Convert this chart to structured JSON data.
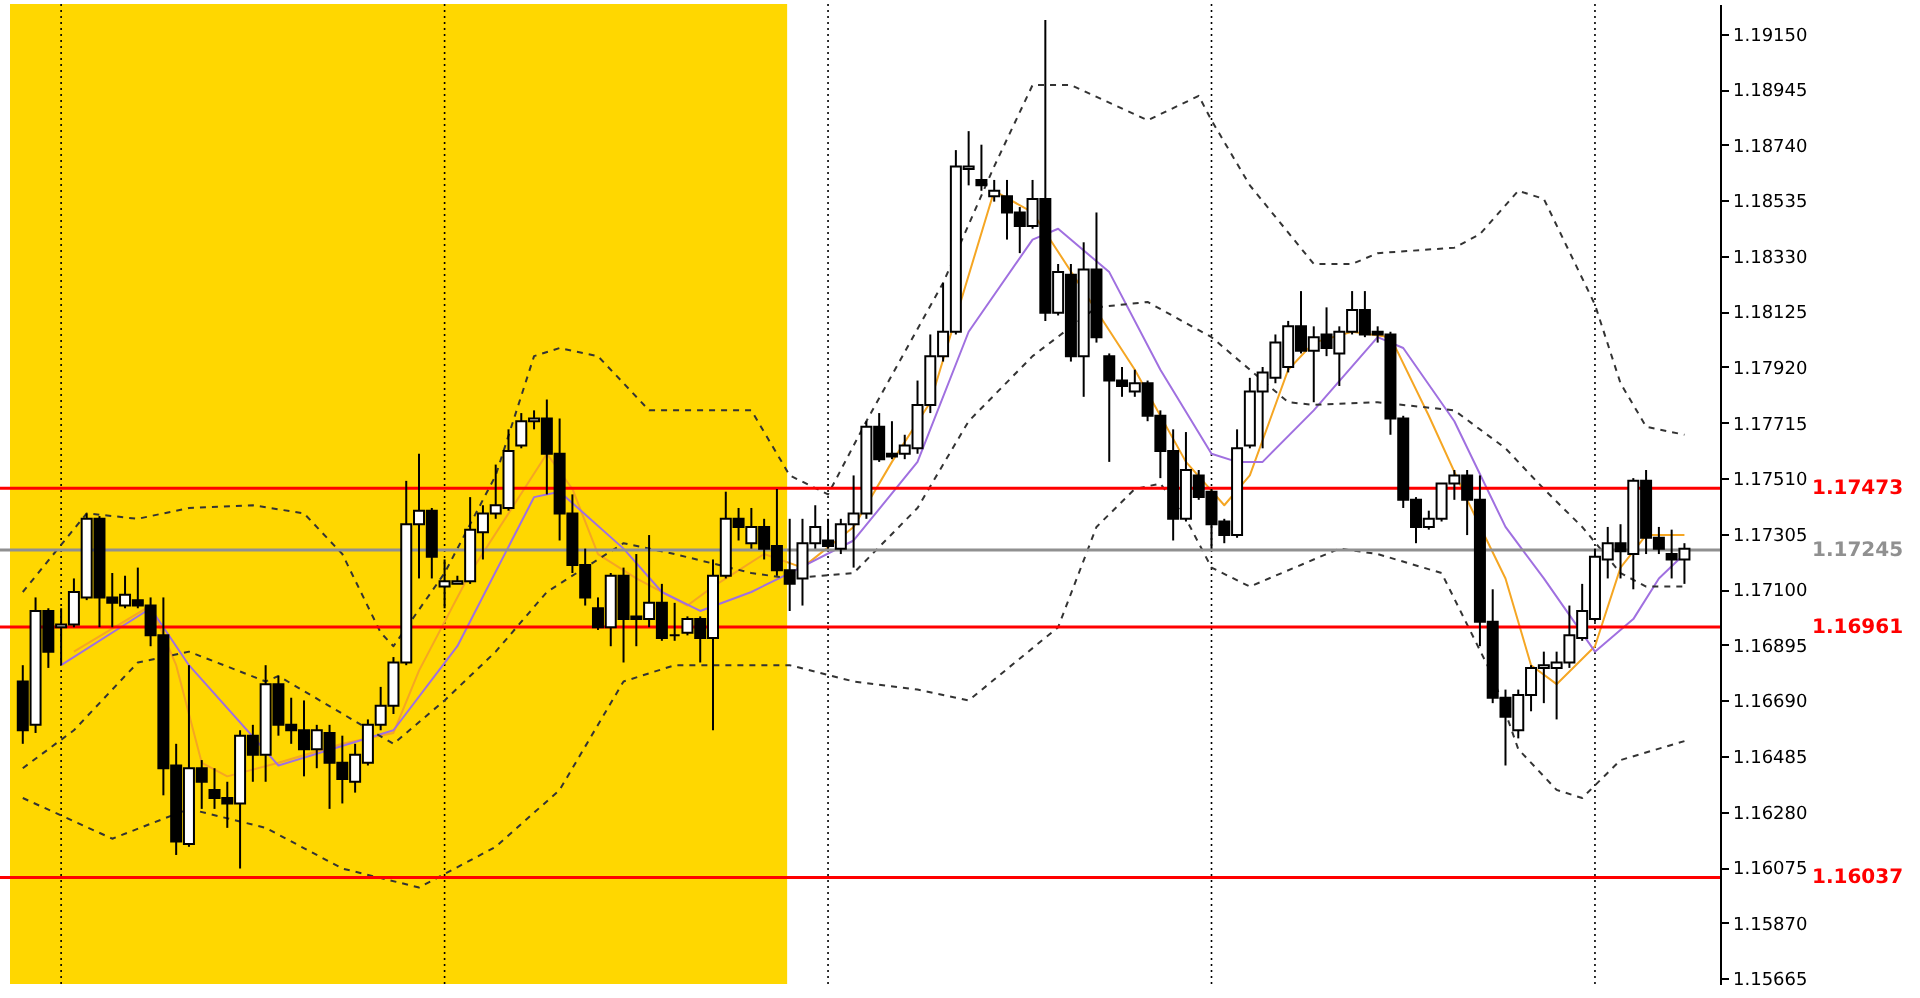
{
  "chart_data": {
    "type": "candlestick",
    "color": "#000000",
    "categories": [
      null,
      null,
      null,
      null,
      null,
      null,
      null,
      null,
      null,
      null,
      null,
      null,
      null,
      null,
      null,
      null,
      null,
      null,
      null,
      null,
      null,
      null,
      null,
      null,
      null,
      null,
      null,
      null,
      null,
      null,
      null,
      null,
      null,
      null,
      null,
      null,
      null,
      null,
      null,
      null,
      null,
      null,
      null,
      null,
      null,
      null,
      null,
      null,
      null,
      null,
      null,
      null,
      null,
      null,
      null,
      null,
      null,
      null,
      null,
      null,
      null,
      null,
      null,
      null,
      null,
      null,
      null,
      null,
      null,
      null,
      null,
      null,
      null,
      null,
      null,
      null,
      null,
      null,
      null,
      null,
      null,
      null,
      null,
      null,
      null,
      null,
      null,
      null,
      null,
      null,
      null,
      null,
      null,
      null,
      null,
      null,
      null,
      null,
      null,
      null,
      null,
      null,
      null,
      null,
      null,
      null,
      null,
      null,
      null,
      null,
      null,
      null,
      null,
      null,
      null,
      null,
      null,
      null,
      null,
      null,
      null,
      null,
      null,
      null,
      null,
      null,
      null,
      null,
      null,
      null,
      null
    ],
    "ohlc": [
      [
        1.1676,
        1.1682,
        1.1653,
        1.1658
      ],
      [
        1.166,
        1.1707,
        1.1657,
        1.1702
      ],
      [
        1.1702,
        1.1703,
        1.1681,
        1.1687
      ],
      [
        1.1696,
        1.1703,
        1.1682,
        1.1697
      ],
      [
        1.1697,
        1.1714,
        1.1696,
        1.1709
      ],
      [
        1.1707,
        1.1738,
        1.1706,
        1.1736
      ],
      [
        1.1736,
        1.1737,
        1.1696,
        1.1707
      ],
      [
        1.1707,
        1.1716,
        1.1696,
        1.1705
      ],
      [
        1.1704,
        1.1715,
        1.1703,
        1.1708
      ],
      [
        1.1706,
        1.1718,
        1.1703,
        1.1704
      ],
      [
        1.1704,
        1.1707,
        1.1689,
        1.1693
      ],
      [
        1.1693,
        1.1707,
        1.1634,
        1.1644
      ],
      [
        1.1645,
        1.1653,
        1.1612,
        1.1617
      ],
      [
        1.1616,
        1.1682,
        1.1615,
        1.1644
      ],
      [
        1.1644,
        1.1647,
        1.1629,
        1.1639
      ],
      [
        1.1636,
        1.1644,
        1.1629,
        1.1633
      ],
      [
        1.1633,
        1.1639,
        1.1622,
        1.1631
      ],
      [
        1.1631,
        1.1658,
        1.1607,
        1.1656
      ],
      [
        1.1656,
        1.166,
        1.1639,
        1.1649
      ],
      [
        1.1649,
        1.1682,
        1.1639,
        1.1675
      ],
      [
        1.1675,
        1.1678,
        1.1656,
        1.166
      ],
      [
        1.166,
        1.167,
        1.1653,
        1.1658
      ],
      [
        1.1658,
        1.1669,
        1.1641,
        1.1651
      ],
      [
        1.1651,
        1.166,
        1.1644,
        1.1658
      ],
      [
        1.1657,
        1.166,
        1.1629,
        1.1646
      ],
      [
        1.1646,
        1.1656,
        1.1631,
        1.164
      ],
      [
        1.1639,
        1.1653,
        1.1635,
        1.1649
      ],
      [
        1.1646,
        1.1662,
        1.1645,
        1.166
      ],
      [
        1.166,
        1.1674,
        1.1658,
        1.1667
      ],
      [
        1.1667,
        1.1685,
        1.1664,
        1.1683
      ],
      [
        1.1683,
        1.175,
        1.1682,
        1.1734
      ],
      [
        1.1734,
        1.176,
        1.1714,
        1.1739
      ],
      [
        1.1739,
        1.174,
        1.1714,
        1.1722
      ],
      [
        1.1711,
        1.1721,
        1.1703,
        1.1713
      ],
      [
        1.1712,
        1.1715,
        1.1712,
        1.1713
      ],
      [
        1.1713,
        1.1744,
        1.1712,
        1.1732
      ],
      [
        1.1731,
        1.1741,
        1.1721,
        1.1738
      ],
      [
        1.1738,
        1.1756,
        1.1736,
        1.1741
      ],
      [
        1.174,
        1.1769,
        1.1739,
        1.1761
      ],
      [
        1.1763,
        1.1775,
        1.1762,
        1.1772
      ],
      [
        1.1772,
        1.1776,
        1.1769,
        1.1773
      ],
      [
        1.1773,
        1.178,
        1.1745,
        1.176
      ],
      [
        1.176,
        1.1773,
        1.1728,
        1.1738
      ],
      [
        1.1738,
        1.1745,
        1.1716,
        1.1719
      ],
      [
        1.1719,
        1.1725,
        1.1704,
        1.1707
      ],
      [
        1.1703,
        1.1707,
        1.1695,
        1.1696
      ],
      [
        1.1696,
        1.1716,
        1.1689,
        1.1715
      ],
      [
        1.1715,
        1.1718,
        1.1683,
        1.1699
      ],
      [
        1.17,
        1.1723,
        1.1689,
        1.1699
      ],
      [
        1.1699,
        1.173,
        1.1696,
        1.1705
      ],
      [
        1.1705,
        1.1712,
        1.1691,
        1.1692
      ],
      [
        1.1693,
        1.1705,
        1.1691,
        1.1693
      ],
      [
        1.1694,
        1.17,
        1.1693,
        1.1699
      ],
      [
        1.1699,
        1.17,
        1.1683,
        1.1692
      ],
      [
        1.1692,
        1.1721,
        1.1658,
        1.1715
      ],
      [
        1.1715,
        1.1746,
        1.1714,
        1.1736
      ],
      [
        1.1736,
        1.174,
        1.1728,
        1.1733
      ],
      [
        1.1727,
        1.174,
        1.1725,
        1.1733
      ],
      [
        1.1733,
        1.1736,
        1.1721,
        1.1725
      ],
      [
        1.1726,
        1.1747,
        1.1715,
        1.1717
      ],
      [
        1.1717,
        1.1736,
        1.1702,
        1.1712
      ],
      [
        1.1714,
        1.1736,
        1.1704,
        1.1727
      ],
      [
        1.1727,
        1.1741,
        1.1725,
        1.1733
      ],
      [
        1.1728,
        1.1736,
        1.1725,
        1.1726
      ],
      [
        1.1725,
        1.1736,
        1.1723,
        1.1734
      ],
      [
        1.1734,
        1.1752,
        1.1718,
        1.1738
      ],
      [
        1.1738,
        1.1772,
        1.1736,
        1.177
      ],
      [
        1.177,
        1.1775,
        1.1757,
        1.1758
      ],
      [
        1.176,
        1.1772,
        1.1758,
        1.1759
      ],
      [
        1.176,
        1.1767,
        1.1758,
        1.1763
      ],
      [
        1.1762,
        1.1787,
        1.176,
        1.1778
      ],
      [
        1.1778,
        1.1804,
        1.1775,
        1.1796
      ],
      [
        1.1796,
        1.1823,
        1.1794,
        1.1805
      ],
      [
        1.1805,
        1.1872,
        1.1804,
        1.1866
      ],
      [
        1.1865,
        1.1879,
        1.1859,
        1.1866
      ],
      [
        1.1861,
        1.1874,
        1.1857,
        1.1859
      ],
      [
        1.1855,
        1.1861,
        1.1853,
        1.1857
      ],
      [
        1.1855,
        1.1861,
        1.1839,
        1.1849
      ],
      [
        1.1849,
        1.1851,
        1.1834,
        1.1844
      ],
      [
        1.1844,
        1.1861,
        1.1843,
        1.1854
      ],
      [
        1.1854,
        1.192,
        1.1809,
        1.1812
      ],
      [
        1.1812,
        1.183,
        1.1811,
        1.1827
      ],
      [
        1.1826,
        1.183,
        1.1794,
        1.1796
      ],
      [
        1.1796,
        1.1838,
        1.1781,
        1.1828
      ],
      [
        1.1828,
        1.1849,
        1.1801,
        1.1803
      ],
      [
        1.1796,
        1.1797,
        1.1757,
        1.1787
      ],
      [
        1.1787,
        1.1792,
        1.1781,
        1.1785
      ],
      [
        1.1783,
        1.1791,
        1.1781,
        1.1786
      ],
      [
        1.1786,
        1.1787,
        1.1772,
        1.1774
      ],
      [
        1.1774,
        1.1776,
        1.1751,
        1.1761
      ],
      [
        1.1761,
        1.1769,
        1.1728,
        1.1736
      ],
      [
        1.1736,
        1.1768,
        1.1735,
        1.1754
      ],
      [
        1.1752,
        1.1754,
        1.1743,
        1.1744
      ],
      [
        1.1746,
        1.1747,
        1.1725,
        1.1734
      ],
      [
        1.1735,
        1.1736,
        1.1727,
        1.173
      ],
      [
        1.173,
        1.1769,
        1.1729,
        1.1762
      ],
      [
        1.1763,
        1.1788,
        1.1762,
        1.1783
      ],
      [
        1.1783,
        1.1792,
        1.1762,
        1.179
      ],
      [
        1.1788,
        1.1804,
        1.1786,
        1.1801
      ],
      [
        1.1792,
        1.1809,
        1.179,
        1.1807
      ],
      [
        1.1807,
        1.182,
        1.1797,
        1.1798
      ],
      [
        1.1798,
        1.1807,
        1.1779,
        1.1803
      ],
      [
        1.1804,
        1.1814,
        1.1796,
        1.1799
      ],
      [
        1.1797,
        1.1807,
        1.1785,
        1.1805
      ],
      [
        1.1805,
        1.182,
        1.1804,
        1.1813
      ],
      [
        1.1813,
        1.182,
        1.1803,
        1.1804
      ],
      [
        1.1805,
        1.1807,
        1.1801,
        1.1804
      ],
      [
        1.1804,
        1.1805,
        1.1767,
        1.1773
      ],
      [
        1.1773,
        1.1774,
        1.174,
        1.1743
      ],
      [
        1.1743,
        1.1744,
        1.1727,
        1.1733
      ],
      [
        1.1733,
        1.1739,
        1.1732,
        1.1736
      ],
      [
        1.1736,
        1.1749,
        1.1735,
        1.1749
      ],
      [
        1.1749,
        1.1754,
        1.1743,
        1.1752
      ],
      [
        1.1752,
        1.1754,
        1.173,
        1.1743
      ],
      [
        1.1743,
        1.1752,
        1.1689,
        1.1698
      ],
      [
        1.1698,
        1.171,
        1.1668,
        1.167
      ],
      [
        1.167,
        1.1673,
        1.1645,
        1.1663
      ],
      [
        1.1658,
        1.1673,
        1.1655,
        1.1671
      ],
      [
        1.1671,
        1.1682,
        1.1665,
        1.1681
      ],
      [
        1.1681,
        1.1687,
        1.1668,
        1.1682
      ],
      [
        1.1681,
        1.1687,
        1.1662,
        1.1683
      ],
      [
        1.1683,
        1.1704,
        1.1681,
        1.1693
      ],
      [
        1.1692,
        1.1712,
        1.1691,
        1.1702
      ],
      [
        1.1699,
        1.1725,
        1.1698,
        1.1722
      ],
      [
        1.1721,
        1.1733,
        1.1714,
        1.1727
      ],
      [
        1.1727,
        1.1734,
        1.1714,
        1.1724
      ],
      [
        1.1723,
        1.1751,
        1.171,
        1.175
      ],
      [
        1.175,
        1.1754,
        1.1723,
        1.1729
      ],
      [
        1.1729,
        1.1733,
        1.1723,
        1.1725
      ],
      [
        1.1723,
        1.1732,
        1.1714,
        1.1721
      ],
      [
        1.1721,
        1.1727,
        1.1712,
        1.1725
      ]
    ],
    "series": [
      {
        "type": "line",
        "color": "#f5a623",
        "values": [
          null,
          null,
          null,
          null,
          1.1687,
          null,
          null,
          null,
          null,
          null,
          1.1704,
          null,
          1.1682,
          null,
          1.1646,
          null,
          1.1641,
          null,
          null,
          null,
          1.1646,
          null,
          null,
          null,
          null,
          1.1653,
          null,
          null,
          null,
          1.1657,
          null,
          1.168,
          null,
          null,
          null,
          1.1716,
          null,
          null,
          null,
          null,
          null,
          1.176,
          null,
          1.1747,
          null,
          1.1723,
          null,
          null,
          1.1714,
          null,
          null,
          null,
          1.1704,
          null,
          1.1711,
          null,
          null,
          null,
          1.1723,
          null,
          null,
          1.1718,
          null,
          null,
          null,
          1.1733,
          null,
          null,
          1.1757,
          null,
          null,
          1.1779,
          null,
          null,
          null,
          null,
          1.1857,
          null,
          null,
          1.1849,
          null,
          null,
          null,
          null,
          null,
          null,
          null,
          1.1791,
          null,
          null,
          null,
          1.1757,
          null,
          null,
          1.1741,
          null,
          1.1752,
          null,
          null,
          1.1791,
          null,
          1.1801,
          null,
          null,
          1.1805,
          null,
          null,
          1.1803,
          null,
          null,
          1.1774,
          null,
          null,
          1.1743,
          null,
          null,
          1.1714,
          null,
          1.1682,
          null,
          1.1675,
          null,
          null,
          1.1689,
          null,
          1.1718,
          null,
          1.173,
          null,
          null,
          1.173
        ]
      },
      {
        "type": "line",
        "color": "#a070e0",
        "values": [
          null,
          null,
          null,
          1.1682,
          null,
          null,
          null,
          null,
          null,
          null,
          1.1703,
          null,
          null,
          1.1682,
          null,
          null,
          null,
          null,
          null,
          null,
          1.1645,
          null,
          null,
          null,
          null,
          null,
          null,
          null,
          null,
          1.1658,
          null,
          null,
          null,
          null,
          1.1689,
          null,
          null,
          null,
          null,
          null,
          1.1744,
          null,
          1.1746,
          null,
          null,
          null,
          null,
          1.1725,
          null,
          null,
          1.1709,
          null,
          null,
          1.1702,
          null,
          null,
          null,
          1.1709,
          null,
          null,
          1.1716,
          null,
          null,
          null,
          null,
          1.1728,
          null,
          null,
          null,
          null,
          1.1757,
          null,
          null,
          null,
          1.1805,
          null,
          null,
          null,
          null,
          1.1839,
          null,
          1.1843,
          null,
          null,
          null,
          1.1827,
          null,
          null,
          null,
          1.1791,
          null,
          null,
          null,
          1.176,
          null,
          1.1757,
          null,
          1.1757,
          null,
          null,
          null,
          1.1776,
          null,
          null,
          null,
          null,
          1.1803,
          null,
          1.1799,
          null,
          null,
          null,
          1.1772,
          null,
          null,
          null,
          1.1733,
          null,
          null,
          1.1714,
          null,
          null,
          null,
          1.1687,
          null,
          null,
          1.1699,
          null,
          1.1714,
          null,
          1.1723
        ]
      },
      {
        "type": "line",
        "color": "#333333",
        "line_style": "dashed",
        "values": [
          1.1709,
          null,
          null,
          null,
          null,
          1.1738,
          null,
          null,
          null,
          1.1736,
          null,
          null,
          null,
          1.174,
          null,
          null,
          null,
          null,
          1.1741,
          null,
          null,
          null,
          1.1738,
          null,
          null,
          1.1723,
          null,
          null,
          1.1694,
          1.1689,
          null,
          null,
          null,
          1.1716,
          null,
          null,
          null,
          1.1752,
          null,
          null,
          1.1796,
          null,
          1.1799,
          null,
          null,
          1.1796,
          null,
          null,
          null,
          1.1776,
          null,
          null,
          null,
          null,
          null,
          null,
          null,
          1.1776,
          null,
          null,
          1.1752,
          null,
          null,
          1.1745,
          null,
          null,
          1.1772,
          null,
          null,
          null,
          null,
          null,
          1.1823,
          null,
          null,
          null,
          1.1866,
          null,
          null,
          1.1896,
          null,
          null,
          1.1896,
          null,
          null,
          null,
          null,
          null,
          1.1883,
          null,
          null,
          null,
          1.1892,
          1.1883,
          null,
          null,
          1.1859,
          null,
          null,
          null,
          null,
          1.183,
          null,
          null,
          1.183,
          null,
          1.1834,
          null,
          null,
          null,
          null,
          null,
          1.1836,
          null,
          1.1841,
          null,
          null,
          1.1857,
          null,
          1.1854,
          null,
          null,
          null,
          1.1815,
          null,
          1.1786,
          null,
          1.177,
          null,
          null,
          1.1767
        ]
      },
      {
        "type": "line",
        "color": "#333333",
        "line_style": "dashed",
        "values": [
          1.1644,
          null,
          null,
          null,
          1.1658,
          null,
          null,
          null,
          null,
          1.1683,
          null,
          null,
          null,
          1.1687,
          null,
          null,
          null,
          null,
          null,
          1.1676,
          1.1678,
          null,
          null,
          null,
          null,
          null,
          null,
          null,
          null,
          1.1653,
          null,
          null,
          null,
          1.1669,
          null,
          null,
          null,
          1.1687,
          null,
          null,
          null,
          1.1709,
          null,
          null,
          null,
          null,
          null,
          1.1727,
          null,
          null,
          null,
          1.1723,
          null,
          null,
          null,
          null,
          null,
          1.1716,
          null,
          null,
          1.1714,
          null,
          null,
          null,
          null,
          1.1716,
          null,
          null,
          null,
          null,
          1.174,
          null,
          null,
          null,
          1.1772,
          null,
          null,
          null,
          null,
          1.1796,
          null,
          null,
          null,
          null,
          1.1814,
          null,
          null,
          null,
          1.1816,
          null,
          null,
          null,
          null,
          1.1803,
          null,
          null,
          null,
          null,
          null,
          1.1779,
          null,
          1.1778,
          null,
          null,
          null,
          null,
          1.1779,
          null,
          null,
          null,
          null,
          null,
          1.1776,
          null,
          null,
          null,
          1.1762,
          null,
          null,
          1.1747,
          null,
          null,
          1.1733,
          null,
          null,
          1.1716,
          null,
          1.1711,
          null,
          null,
          1.1711
        ]
      },
      {
        "type": "line",
        "color": "#333333",
        "line_style": "dashed",
        "values": [
          1.1633,
          null,
          null,
          null,
          null,
          null,
          null,
          1.1618,
          null,
          null,
          null,
          null,
          null,
          1.1629,
          null,
          null,
          null,
          null,
          null,
          1.1622,
          null,
          null,
          null,
          null,
          null,
          1.1607,
          null,
          null,
          null,
          null,
          null,
          1.16,
          null,
          null,
          null,
          null,
          null,
          1.1615,
          null,
          null,
          null,
          null,
          1.1636,
          null,
          null,
          null,
          null,
          1.1676,
          null,
          null,
          null,
          1.1682,
          null,
          null,
          null,
          null,
          null,
          null,
          null,
          null,
          1.1682,
          null,
          null,
          null,
          null,
          1.1676,
          null,
          null,
          null,
          null,
          1.1673,
          null,
          null,
          null,
          1.1669,
          null,
          null,
          null,
          null,
          null,
          null,
          1.1696,
          null,
          null,
          1.1733,
          null,
          null,
          1.1747,
          null,
          1.1749,
          null,
          1.1736,
          null,
          1.1718,
          null,
          null,
          1.1711,
          null,
          null,
          null,
          null,
          null,
          null,
          1.1725,
          null,
          null,
          1.1723,
          null,
          null,
          null,
          null,
          1.1716,
          null,
          null,
          null,
          1.1678,
          null,
          1.1651,
          null,
          null,
          1.1636,
          null,
          1.1633,
          null,
          null,
          1.1647,
          null,
          null,
          null,
          null,
          1.1654
        ]
      }
    ],
    "ylim": [
      1.15644,
      1.19259
    ],
    "yticks": [
      {
        "value": 1.1915,
        "label": "1.19150"
      },
      {
        "value": 1.18945,
        "label": "1.18945"
      },
      {
        "value": 1.1874,
        "label": "1.18740"
      },
      {
        "value": 1.18535,
        "label": "1.18535"
      },
      {
        "value": 1.1833,
        "label": "1.18330"
      },
      {
        "value": 1.18125,
        "label": "1.18125"
      },
      {
        "value": 1.1792,
        "label": "1.17920"
      },
      {
        "value": 1.17715,
        "label": "1.17715"
      },
      {
        "value": 1.1751,
        "label": "1.17510"
      },
      {
        "value": 1.17305,
        "label": "1.17305"
      },
      {
        "value": 1.171,
        "label": "1.17100"
      },
      {
        "value": 1.16895,
        "label": "1.16895"
      },
      {
        "value": 1.1669,
        "label": "1.16690"
      },
      {
        "value": 1.16485,
        "label": "1.16485"
      },
      {
        "value": 1.1628,
        "label": "1.16280"
      },
      {
        "value": 1.16075,
        "label": "1.16075"
      },
      {
        "value": 1.1587,
        "label": "1.15870"
      },
      {
        "value": 1.15665,
        "label": "1.15665"
      }
    ],
    "tick_labels": "y",
    "ref_lines": [
      {
        "axis": "y",
        "value": 1.17245,
        "label": "1.17245",
        "color": "#909090"
      },
      {
        "axis": "y",
        "value": 1.17473,
        "label": "1.17473",
        "color": "#ff0000"
      },
      {
        "axis": "y",
        "value": 1.16961,
        "label": "1.16961",
        "color": "#ff0000"
      },
      {
        "axis": "y",
        "value": 1.16037,
        "label": "1.16037",
        "color": "#ff0000"
      }
    ]
  }
}
